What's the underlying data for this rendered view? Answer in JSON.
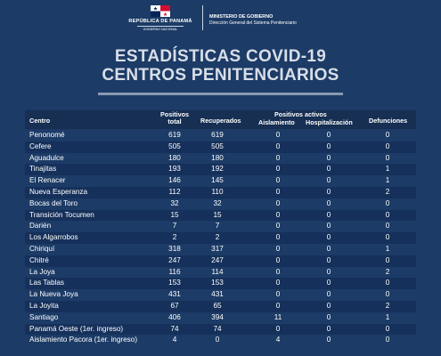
{
  "header": {
    "republica_name": "REPÚBLICA DE PANAMÁ",
    "republica_sub": "GOBIERNO NACIONAL",
    "ministerio_name": "MINISTERIO DE GOBIERNO",
    "ministerio_sub": "Dirección General del Sistema Penitenciario",
    "flag_colors": [
      "#ffffff",
      "#d21034",
      "#072357"
    ]
  },
  "title": {
    "line1": "ESTADÍSTICAS COVID-19",
    "line2": "CENTROS PENITENCIARIOS"
  },
  "table": {
    "headers": {
      "centro": "Centro",
      "positivos_total_1": "Positivos",
      "positivos_total_2": "total",
      "recuperados": "Recuperados",
      "positivos_activos": "Positivos activos",
      "aislamiento": "Aislamiento",
      "hospitalizacion": "Hospitalización",
      "defunciones": "Defunciones"
    },
    "rows": [
      {
        "centro": "Penonomé",
        "positivos": "619",
        "recuperados": "619",
        "aislamiento": "0",
        "hospitalizacion": "0",
        "defunciones": "0"
      },
      {
        "centro": "Cefere",
        "positivos": "505",
        "recuperados": "505",
        "aislamiento": "0",
        "hospitalizacion": "0",
        "defunciones": "0"
      },
      {
        "centro": "Aguadulce",
        "positivos": "180",
        "recuperados": "180",
        "aislamiento": "0",
        "hospitalizacion": "0",
        "defunciones": "0"
      },
      {
        "centro": "Tinajitas",
        "positivos": "193",
        "recuperados": "192",
        "aislamiento": "0",
        "hospitalizacion": "0",
        "defunciones": "1"
      },
      {
        "centro": "El Renacer",
        "positivos": "146",
        "recuperados": "145",
        "aislamiento": "0",
        "hospitalizacion": "0",
        "defunciones": "1"
      },
      {
        "centro": "Nueva Esperanza",
        "positivos": "112",
        "recuperados": "110",
        "aislamiento": "0",
        "hospitalizacion": "0",
        "defunciones": "2"
      },
      {
        "centro": "Bocas del Toro",
        "positivos": "32",
        "recuperados": "32",
        "aislamiento": "0",
        "hospitalizacion": "0",
        "defunciones": "0"
      },
      {
        "centro": "Transición Tocumen",
        "positivos": "15",
        "recuperados": "15",
        "aislamiento": "0",
        "hospitalizacion": "0",
        "defunciones": "0"
      },
      {
        "centro": "Darién",
        "positivos": "7",
        "recuperados": "7",
        "aislamiento": "0",
        "hospitalizacion": "0",
        "defunciones": "0"
      },
      {
        "centro": "Los Algarrobos",
        "positivos": "2",
        "recuperados": "2",
        "aislamiento": "0",
        "hospitalizacion": "0",
        "defunciones": "0"
      },
      {
        "centro": "Chiriquí",
        "positivos": "318",
        "recuperados": "317",
        "aislamiento": "0",
        "hospitalizacion": "0",
        "defunciones": "1"
      },
      {
        "centro": "Chitré",
        "positivos": "247",
        "recuperados": "247",
        "aislamiento": "0",
        "hospitalizacion": "0",
        "defunciones": "0"
      },
      {
        "centro": "La Joya",
        "positivos": "116",
        "recuperados": "114",
        "aislamiento": "0",
        "hospitalizacion": "0",
        "defunciones": "2"
      },
      {
        "centro": "Las Tablas",
        "positivos": "153",
        "recuperados": "153",
        "aislamiento": "0",
        "hospitalizacion": "0",
        "defunciones": "0"
      },
      {
        "centro": "La Nueva Joya",
        "positivos": "431",
        "recuperados": "431",
        "aislamiento": "0",
        "hospitalizacion": "0",
        "defunciones": "0"
      },
      {
        "centro": "La Joyita",
        "positivos": "67",
        "recuperados": "65",
        "aislamiento": "0",
        "hospitalizacion": "0",
        "defunciones": "2"
      },
      {
        "centro": "Santiago",
        "positivos": "406",
        "recuperados": "394",
        "aislamiento": "11",
        "hospitalizacion": "0",
        "defunciones": "1"
      },
      {
        "centro": "Panamá Oeste (1er. ingreso)",
        "positivos": "74",
        "recuperados": "74",
        "aislamiento": "0",
        "hospitalizacion": "0",
        "defunciones": "0"
      },
      {
        "centro": "Aislamiento Pacora (1er. ingreso)",
        "positivos": "4",
        "recuperados": "0",
        "aislamiento": "4",
        "hospitalizacion": "0",
        "defunciones": "0"
      }
    ]
  }
}
